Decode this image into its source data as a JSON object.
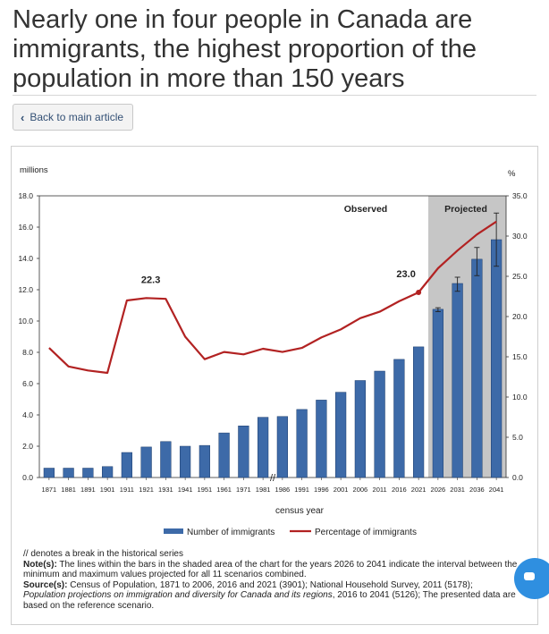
{
  "headline": "Nearly one in four people in Canada are immigrants, the highest proportion of the population in more than 150 years",
  "back_button": {
    "label": "Back to main article",
    "icon": "chevron-left-icon"
  },
  "chart_data": {
    "type": "bar",
    "categories": [
      "1871",
      "1881",
      "1891",
      "1901",
      "1911",
      "1921",
      "1931",
      "1941",
      "1951",
      "1961",
      "1971",
      "1981",
      "1986",
      "1991",
      "1996",
      "2001",
      "2006",
      "2011",
      "2016",
      "2021",
      "2026",
      "2031",
      "2036",
      "2041"
    ],
    "xlabel": "census year",
    "ylabel_left": "millions",
    "ylabel_right": "%",
    "ylim_left": [
      0,
      18
    ],
    "ylim_right": [
      0,
      35
    ],
    "yticks_left": [
      "0.0",
      "2.0",
      "4.0",
      "6.0",
      "8.0",
      "10.0",
      "12.0",
      "14.0",
      "16.0",
      "18.0"
    ],
    "yticks_right": [
      "0.0",
      "5.0",
      "10.0",
      "15.0",
      "20.0",
      "25.0",
      "30.0",
      "35.0"
    ],
    "series": [
      {
        "name": "Number of immigrants",
        "kind": "bar",
        "color": "#3d6aa8",
        "values": [
          0.6,
          0.6,
          0.6,
          0.7,
          1.6,
          1.95,
          2.3,
          2.0,
          2.05,
          2.85,
          3.3,
          3.85,
          3.9,
          4.35,
          4.95,
          5.45,
          6.2,
          6.8,
          7.55,
          8.35,
          10.75,
          12.4,
          13.95,
          15.2
        ],
        "range_min": [
          null,
          null,
          null,
          null,
          null,
          null,
          null,
          null,
          null,
          null,
          null,
          null,
          null,
          null,
          null,
          null,
          null,
          null,
          null,
          null,
          10.6,
          11.9,
          12.9,
          13.5
        ],
        "range_max": [
          null,
          null,
          null,
          null,
          null,
          null,
          null,
          null,
          null,
          null,
          null,
          null,
          null,
          null,
          null,
          null,
          null,
          null,
          null,
          null,
          10.85,
          12.8,
          14.7,
          16.9
        ]
      },
      {
        "name": "Percentage of immigrants",
        "kind": "line",
        "color": "#b22222",
        "values": [
          16.1,
          13.8,
          13.3,
          13.0,
          22.0,
          22.3,
          22.2,
          17.5,
          14.7,
          15.6,
          15.3,
          16.0,
          15.6,
          16.1,
          17.4,
          18.4,
          19.8,
          20.6,
          21.9,
          23.0,
          26.0,
          28.2,
          30.2,
          31.8
        ]
      }
    ],
    "annotations": [
      {
        "text": "22.3",
        "category": "1921",
        "value": 22.3
      },
      {
        "text": "23.0",
        "category": "2021",
        "value": 23.0
      }
    ],
    "region_labels": {
      "observed": "Observed",
      "projected": "Projected"
    },
    "projected_from": "2026",
    "break_marker": "//",
    "legend_position": "bottom",
    "grid": false
  },
  "notes": {
    "break_line": "// denotes a break in the historical series",
    "note_label": "Note(s):",
    "note_text": " The lines within the bars in the shaded area of the chart for the years 2026 to 2041 indicate the interval between the minimum and maximum values projected for all 11 scenarios combined.",
    "source_label": "Source(s):",
    "source_text": " Census of Population, 1871 to 2006, 2016 and 2021 (3901); National Household Survey, 2011 (5178);",
    "source_italic": "Population projections on immigration and diversity for Canada and its regions",
    "source_tail": ", 2016 to 2041 (5126); The presented data are based on the reference scenario."
  },
  "chat_button": {
    "icon": "chat-icon"
  }
}
